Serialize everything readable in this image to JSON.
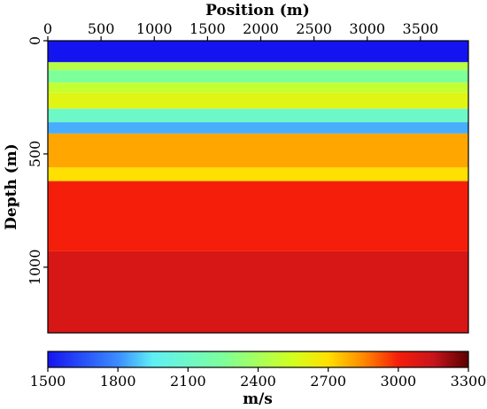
{
  "chart_data": {
    "type": "heatmap",
    "title": "",
    "xlabel": "Position (m)",
    "ylabel": "Depth (m)",
    "x_axis_position": "top",
    "xlim": [
      0,
      3950
    ],
    "ylim": [
      0,
      1290
    ],
    "y_inverted": true,
    "x_ticks": [
      0,
      500,
      1000,
      1500,
      2000,
      2500,
      3000,
      3500
    ],
    "y_ticks": [
      0,
      500,
      1000
    ],
    "colorbar": {
      "label": "m/s",
      "min": 1500,
      "max": 3300,
      "ticks": [
        1500,
        1800,
        2100,
        2400,
        2700,
        3000,
        3300
      ],
      "stops": [
        {
          "value": 1500,
          "color": "#1414f0"
        },
        {
          "value": 1800,
          "color": "#3c8cff"
        },
        {
          "value": 1950,
          "color": "#5ff0f5"
        },
        {
          "value": 2250,
          "color": "#7dff9a"
        },
        {
          "value": 2550,
          "color": "#d2ff1e"
        },
        {
          "value": 2700,
          "color": "#ffe000"
        },
        {
          "value": 2850,
          "color": "#ff8a00"
        },
        {
          "value": 3000,
          "color": "#f51e0a"
        },
        {
          "value": 3150,
          "color": "#c8141c"
        },
        {
          "value": 3300,
          "color": "#5a0000"
        }
      ]
    },
    "layers": [
      {
        "depth_top": 0,
        "depth_bottom": 95,
        "velocity": 1500
      },
      {
        "depth_top": 95,
        "depth_bottom": 130,
        "velocity": 2450
      },
      {
        "depth_top": 130,
        "depth_bottom": 185,
        "velocity": 2250
      },
      {
        "depth_top": 185,
        "depth_bottom": 230,
        "velocity": 2500
      },
      {
        "depth_top": 230,
        "depth_bottom": 300,
        "velocity": 2600
      },
      {
        "depth_top": 300,
        "depth_bottom": 360,
        "velocity": 2100
      },
      {
        "depth_top": 360,
        "depth_bottom": 410,
        "velocity": 1850
      },
      {
        "depth_top": 410,
        "depth_bottom": 560,
        "velocity": 2800
      },
      {
        "depth_top": 560,
        "depth_bottom": 620,
        "velocity": 2700
      },
      {
        "depth_top": 620,
        "depth_bottom": 930,
        "velocity": 3000
      },
      {
        "depth_top": 930,
        "depth_bottom": 1290,
        "velocity": 3100
      }
    ]
  }
}
